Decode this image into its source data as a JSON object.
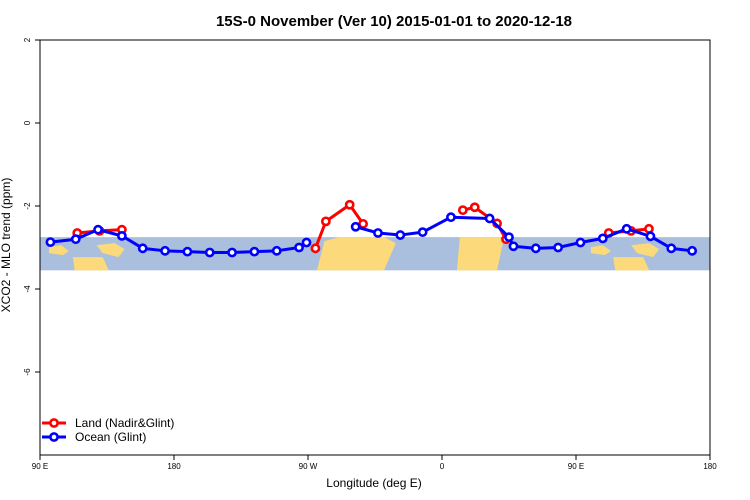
{
  "chart_data": {
    "type": "line",
    "title": "15S-0 November (Ver 10)   2015-01-01 to 2020-12-18",
    "xlabel": "Longitude (deg E)",
    "ylabel": "XCO2 - MLO trend (ppm)",
    "xlim": [
      90,
      540
    ],
    "ylim": [
      -8,
      2
    ],
    "x_ticks": [
      {
        "value": 90,
        "label": "90 E"
      },
      {
        "value": 180,
        "label": "180"
      },
      {
        "value": 270,
        "label": "90 W"
      },
      {
        "value": 360,
        "label": "0"
      },
      {
        "value": 450,
        "label": "90 E"
      },
      {
        "value": 540,
        "label": "180"
      }
    ],
    "y_ticks": [
      {
        "value": 2,
        "label": "2"
      },
      {
        "value": 0,
        "label": "0"
      },
      {
        "value": -2,
        "label": "-2"
      },
      {
        "value": -4,
        "label": "-4"
      },
      {
        "value": -6,
        "label": "-6"
      }
    ],
    "band": {
      "ymin": -3.55,
      "ymax": -2.75,
      "color": "#a9bfdd"
    },
    "land_color": "#fcd97a",
    "legend_position": "bottom-left",
    "series": [
      {
        "name": "Land (Nadir&Glint)",
        "color": "#ff0000",
        "segments": [
          [
            [
              115,
              -2.65
            ],
            [
              130,
              -2.6
            ],
            [
              145,
              -2.57
            ]
          ],
          [
            [
              275,
              -3.02
            ],
            [
              282,
              -2.37
            ],
            [
              298,
              -1.97
            ],
            [
              307,
              -2.43
            ]
          ],
          [
            [
              374,
              -2.1
            ],
            [
              382,
              -2.03
            ],
            [
              397,
              -2.42
            ],
            [
              403,
              -2.8
            ]
          ],
          [
            [
              472,
              -2.65
            ],
            [
              487,
              -2.6
            ],
            [
              499,
              -2.55
            ]
          ]
        ]
      },
      {
        "name": "Ocean (Glint)",
        "color": "#0000ff",
        "segments": [
          [
            [
              97,
              -2.87
            ],
            [
              114,
              -2.8
            ],
            [
              129,
              -2.57
            ],
            [
              145,
              -2.72
            ],
            [
              159,
              -3.02
            ],
            [
              174,
              -3.08
            ],
            [
              189,
              -3.1
            ],
            [
              204,
              -3.12
            ],
            [
              219,
              -3.12
            ],
            [
              234,
              -3.1
            ],
            [
              249,
              -3.08
            ],
            [
              264,
              -3.0
            ],
            [
              269,
              -2.88
            ]
          ],
          [
            [
              302,
              -2.5
            ],
            [
              317,
              -2.65
            ],
            [
              332,
              -2.7
            ],
            [
              347,
              -2.63
            ],
            [
              366,
              -2.27
            ],
            [
              392,
              -2.3
            ],
            [
              405,
              -2.75
            ],
            [
              408,
              -2.97
            ],
            [
              423,
              -3.02
            ],
            [
              438,
              -3.0
            ],
            [
              453,
              -2.88
            ],
            [
              468,
              -2.78
            ],
            [
              484,
              -2.55
            ],
            [
              500,
              -2.73
            ],
            [
              514,
              -3.02
            ],
            [
              528,
              -3.08
            ]
          ]
        ]
      }
    ]
  }
}
